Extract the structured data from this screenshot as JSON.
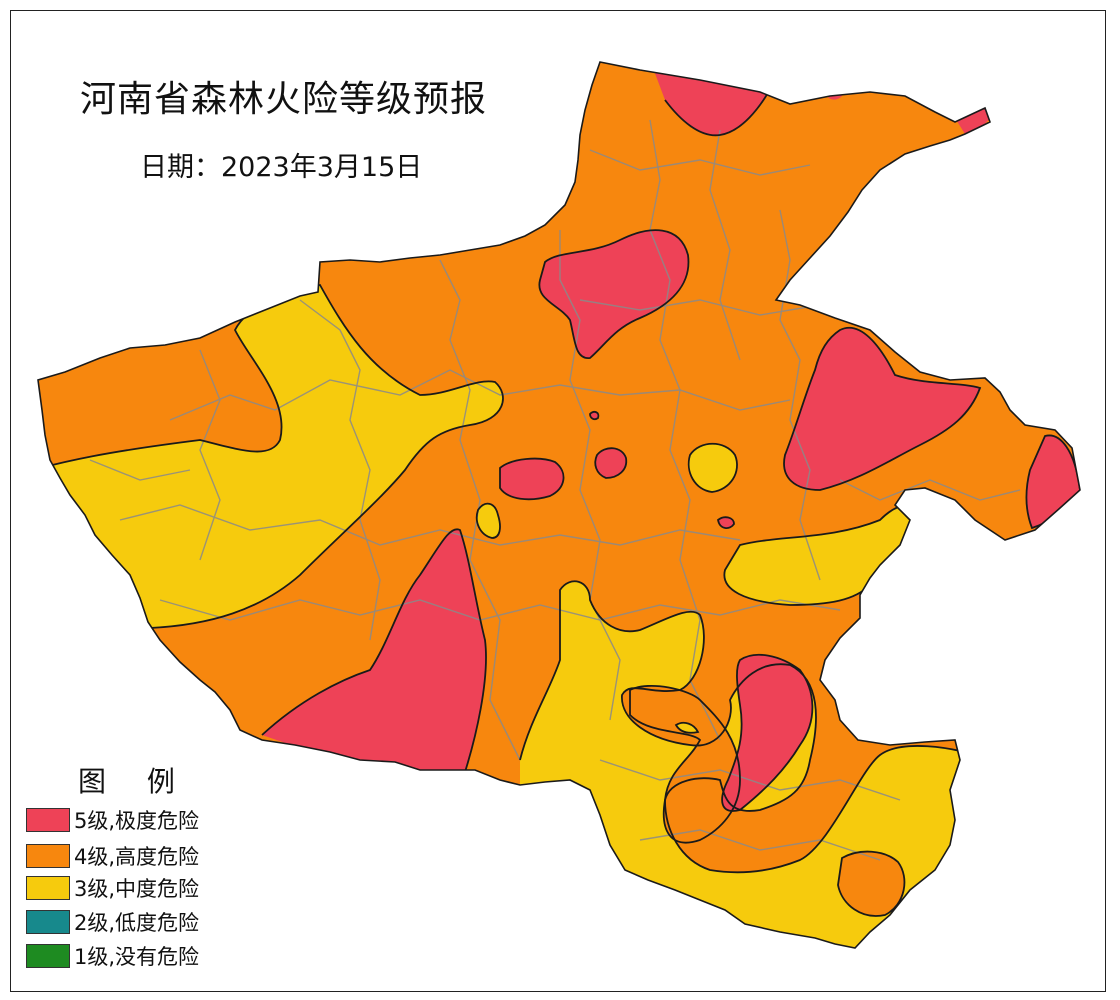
{
  "title": "河南省森林火险等级预报",
  "date": "日期：2023年3月15日",
  "legend": {
    "title": "图 例",
    "items": [
      {
        "label": "5级,极度危险",
        "color": "#ee4257"
      },
      {
        "label": "4级,高度危险",
        "color": "#f7870e"
      },
      {
        "label": "3级,中度危险",
        "color": "#f6cb0d"
      },
      {
        "label": "2级,低度危险",
        "color": "#17898c"
      },
      {
        "label": "1级,没有危险",
        "color": "#1e8b21"
      }
    ]
  },
  "colors": {
    "level5": "#ee4257",
    "level4": "#f7870e",
    "level3": "#f6cb0d",
    "contour": "#1a1a1a",
    "county_border": "#8a8a8a"
  }
}
